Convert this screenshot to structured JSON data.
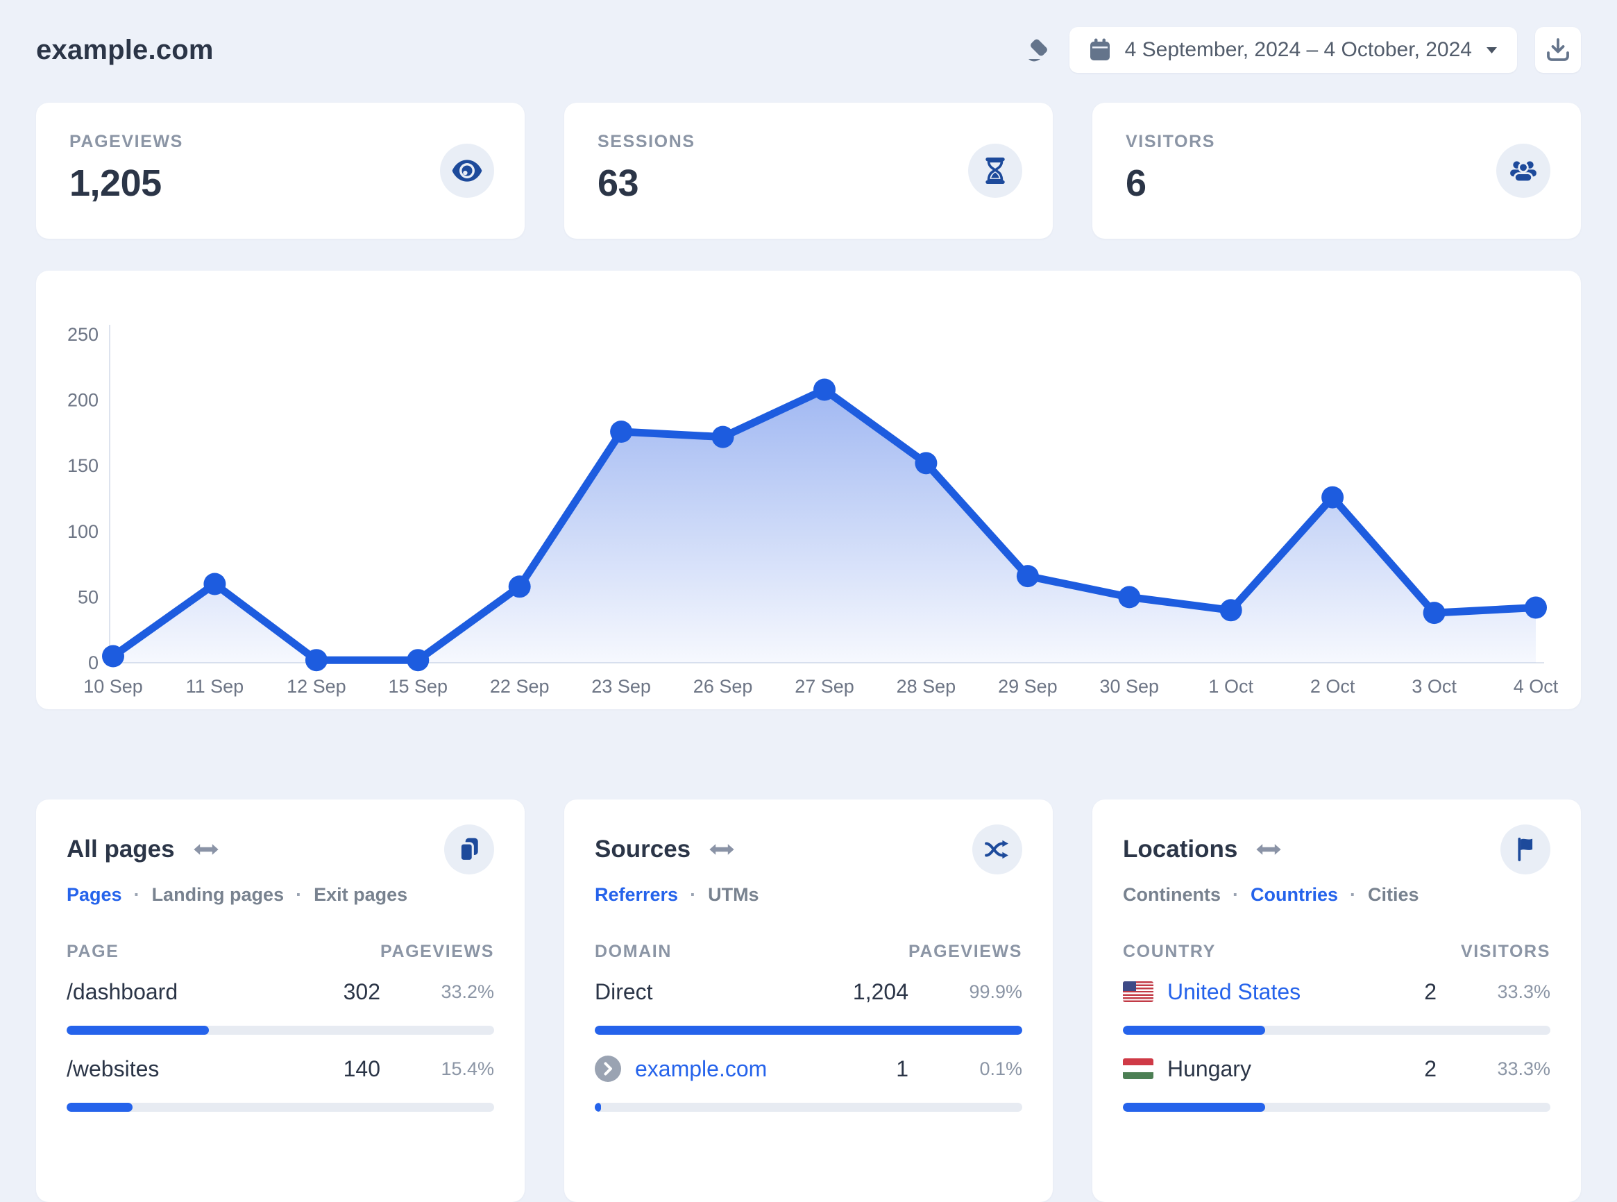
{
  "header": {
    "site_title": "example.com",
    "date_range": "4 September, 2024 – 4 October, 2024",
    "clear_icon": "eraser-icon",
    "calendar_icon": "calendar-icon",
    "caret_icon": "caret-down-icon",
    "download_icon": "download-icon"
  },
  "stats": [
    {
      "label": "PAGEVIEWS",
      "value": "1,205",
      "icon": "eye-icon"
    },
    {
      "label": "SESSIONS",
      "value": "63",
      "icon": "hourglass-icon"
    },
    {
      "label": "VISITORS",
      "value": "6",
      "icon": "users-icon"
    }
  ],
  "chart_data": {
    "type": "area",
    "x": [
      "10 Sep",
      "11 Sep",
      "12 Sep",
      "15 Sep",
      "22 Sep",
      "23 Sep",
      "26 Sep",
      "27 Sep",
      "28 Sep",
      "29 Sep",
      "30 Sep",
      "1 Oct",
      "2 Oct",
      "3 Oct",
      "4 Oct"
    ],
    "series": [
      {
        "name": "Pageviews",
        "values": [
          5,
          60,
          2,
          2,
          58,
          176,
          172,
          208,
          152,
          66,
          50,
          40,
          126,
          38,
          42
        ]
      }
    ],
    "title": "",
    "xlabel": "",
    "ylabel": "",
    "ylim": [
      0,
      250
    ],
    "yticks": [
      0,
      50,
      100,
      150,
      200,
      250
    ],
    "grid": false,
    "legend": "none",
    "line_color": "#1d5cdf",
    "fill_from": "rgba(33,88,224,0.50)",
    "fill_to": "rgba(33,88,224,0.04)"
  },
  "panels": [
    {
      "title": "All pages",
      "icon": "pages-icon",
      "swap_icon": "swap-horizontal-icon",
      "tabs": [
        {
          "label": "Pages",
          "active": true
        },
        {
          "label": "Landing pages",
          "active": false
        },
        {
          "label": "Exit pages",
          "active": false
        }
      ],
      "columns": [
        "PAGE",
        "PAGEVIEWS"
      ],
      "rows": [
        {
          "label": "/dashboard",
          "value": "302",
          "percent": "33.2%",
          "bar": 33.2
        },
        {
          "label": "/websites",
          "value": "140",
          "percent": "15.4%",
          "bar": 15.4
        }
      ]
    },
    {
      "title": "Sources",
      "icon": "shuffle-icon",
      "swap_icon": "swap-horizontal-icon",
      "tabs": [
        {
          "label": "Referrers",
          "active": true
        },
        {
          "label": "UTMs",
          "active": false
        }
      ],
      "columns": [
        "DOMAIN",
        "PAGEVIEWS"
      ],
      "rows": [
        {
          "label": "Direct",
          "value": "1,204",
          "percent": "99.9%",
          "bar": 100
        },
        {
          "label": "example.com",
          "value": "1",
          "percent": "0.1%",
          "bar": 1.5,
          "favicon": "chevron-badge-icon"
        }
      ]
    },
    {
      "title": "Locations",
      "icon": "flag-icon",
      "swap_icon": "swap-horizontal-icon",
      "tabs": [
        {
          "label": "Continents",
          "active": false
        },
        {
          "label": "Countries",
          "active": true
        },
        {
          "label": "Cities",
          "active": false
        }
      ],
      "columns": [
        "COUNTRY",
        "VISITORS"
      ],
      "rows": [
        {
          "label": "United States",
          "value": "2",
          "percent": "33.3%",
          "bar": 33.3,
          "flag": "us"
        },
        {
          "label": "Hungary",
          "value": "2",
          "percent": "33.3%",
          "bar": 33.3,
          "flag": "hu"
        }
      ]
    }
  ],
  "colors": {
    "page_background": "#edf1f9",
    "card_background": "#ffffff",
    "accent_blue": "#2563eb",
    "icon_navy": "#1d4a9b",
    "slate_icon": "#64748b",
    "line_blue": "#1d5cdf",
    "bar_track": "#e7ebf2",
    "text_dark": "#2b3547",
    "text_gray": "#8b95a5"
  }
}
